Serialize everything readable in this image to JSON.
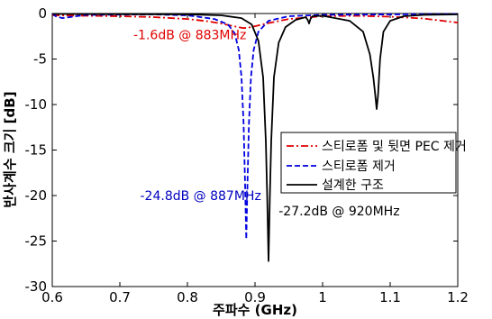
{
  "chart_data": {
    "type": "line",
    "xlabel": "주파수 (GHz)",
    "ylabel": "반사계수 크기 [dB]",
    "xlim": [
      0.6,
      1.2
    ],
    "ylim": [
      -30,
      0
    ],
    "xticks": [
      "0.6",
      "0.7",
      "0.8",
      "0.9",
      "1",
      "1.1",
      "1.2"
    ],
    "yticks": [
      "0",
      "-5",
      "-10",
      "-15",
      "-20",
      "-25",
      "-30"
    ],
    "grid": false,
    "legend_position": "right",
    "series": [
      {
        "name": "스티로폼 및 뒷면 PEC 제거",
        "color": "#e00000",
        "dash": "dashdot",
        "x": [
          0.6,
          0.7,
          0.75,
          0.8,
          0.83,
          0.85,
          0.865,
          0.875,
          0.883,
          0.89,
          0.9,
          0.92,
          0.95,
          1.0,
          1.05,
          1.1,
          1.15,
          1.2
        ],
        "y": [
          -0.2,
          -0.3,
          -0.4,
          -0.6,
          -0.85,
          -1.1,
          -1.35,
          -1.5,
          -1.6,
          -1.55,
          -1.4,
          -1.05,
          -0.6,
          -0.3,
          -0.25,
          -0.35,
          -0.55,
          -1.0
        ]
      },
      {
        "name": "스티로폼 제거",
        "color": "#0000e0",
        "dash": "dash",
        "x": [
          0.6,
          0.605,
          0.615,
          0.65,
          0.75,
          0.8,
          0.84,
          0.86,
          0.87,
          0.876,
          0.88,
          0.883,
          0.885,
          0.887,
          0.889,
          0.891,
          0.894,
          0.898,
          0.905,
          0.92,
          0.95,
          1.0,
          1.1,
          1.2
        ],
        "y": [
          0,
          -0.3,
          -0.5,
          -0.15,
          -0.1,
          -0.2,
          -0.6,
          -1.2,
          -2.2,
          -4.0,
          -7.0,
          -12.0,
          -18.0,
          -24.8,
          -18.0,
          -12.0,
          -7.0,
          -4.0,
          -2.0,
          -0.8,
          -0.3,
          -0.15,
          -0.1,
          -0.05
        ]
      },
      {
        "name": "설계한 구조",
        "color": "#000000",
        "dash": "solid",
        "x": [
          0.6,
          0.8,
          0.85,
          0.88,
          0.895,
          0.905,
          0.912,
          0.916,
          0.918,
          0.92,
          0.922,
          0.924,
          0.928,
          0.935,
          0.945,
          0.96,
          0.975,
          0.978,
          0.98,
          0.982,
          0.985,
          1.0,
          1.04,
          1.06,
          1.07,
          1.075,
          1.078,
          1.08,
          1.082,
          1.085,
          1.09,
          1.1,
          1.12,
          1.15,
          1.2
        ],
        "y": [
          -0.05,
          -0.1,
          -0.2,
          -0.5,
          -1.2,
          -3.0,
          -7.0,
          -14.0,
          -20.0,
          -27.2,
          -20.0,
          -14.0,
          -7.0,
          -3.2,
          -1.5,
          -0.7,
          -0.4,
          -0.7,
          -1.1,
          -0.6,
          -0.3,
          -0.25,
          -0.8,
          -2.0,
          -4.5,
          -7.0,
          -9.0,
          -10.5,
          -9.0,
          -5.0,
          -2.0,
          -0.8,
          -0.3,
          -0.15,
          -0.1
        ]
      }
    ],
    "annotations": [
      {
        "text": "-1.6dB @ 883MHz",
        "color": "#e00000",
        "x": 0.72,
        "y": -2.8
      },
      {
        "text": "-24.8dB @ 887MHz",
        "color": "#0000c0",
        "x": 0.73,
        "y": -20.5
      },
      {
        "text": "-27.2dB @ 920MHz",
        "color": "#000000",
        "x": 0.935,
        "y": -22.2
      }
    ]
  }
}
